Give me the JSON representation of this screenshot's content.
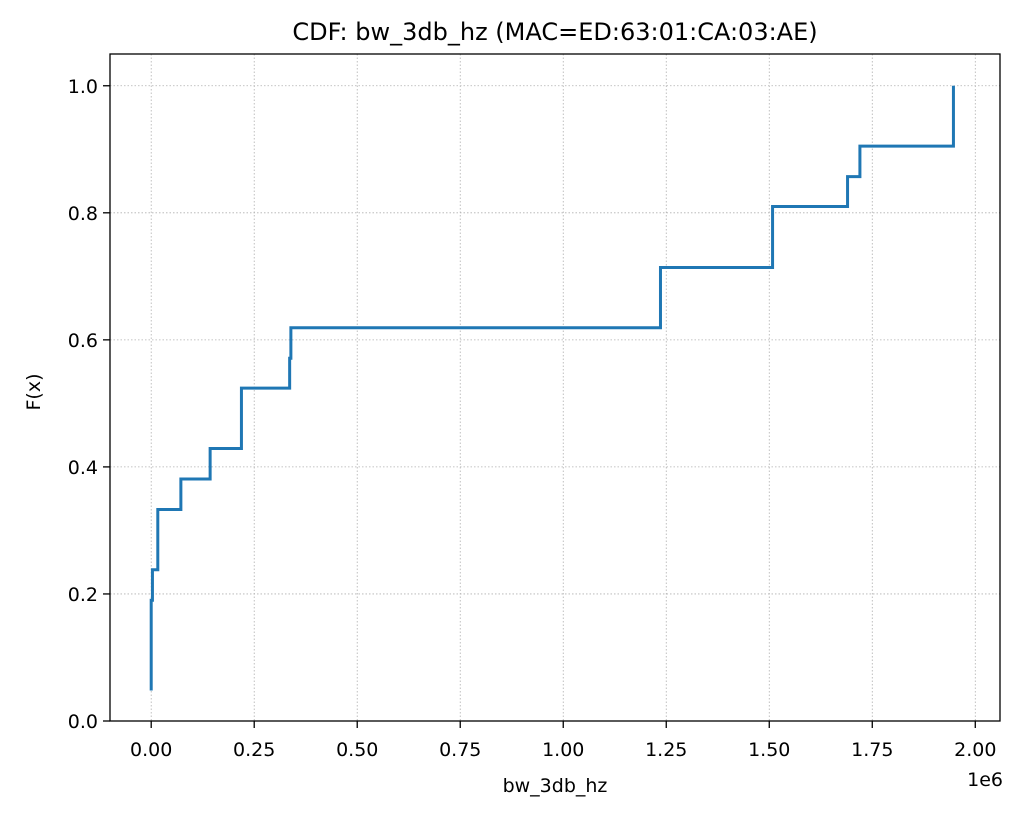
{
  "chart_data": {
    "type": "line",
    "drawstyle": "steps-post",
    "title": "CDF: bw_3db_hz (MAC=ED:63:01:CA:03:AE)",
    "xlabel": "bw_3db_hz",
    "ylabel": "F(x)",
    "x_offset_text": "1e6",
    "xlim": [
      -0.1,
      2.06
    ],
    "ylim": [
      0,
      1.05
    ],
    "x_ticks": [
      0.0,
      0.25,
      0.5,
      0.75,
      1.0,
      1.25,
      1.5,
      1.75,
      2.0
    ],
    "x_tick_labels": [
      "0.00",
      "0.25",
      "0.50",
      "0.75",
      "1.00",
      "1.25",
      "1.50",
      "1.75",
      "2.00"
    ],
    "y_ticks": [
      0.0,
      0.2,
      0.4,
      0.6,
      0.8,
      1.0
    ],
    "y_tick_labels": [
      "0.0",
      "0.2",
      "0.4",
      "0.6",
      "0.8",
      "1.0"
    ],
    "grid": true,
    "line_color": "#1f77b4",
    "series": [
      {
        "x": [
          0.0,
          0.0,
          0.003,
          0.003,
          0.016,
          0.016,
          0.072,
          0.072,
          0.143,
          0.143,
          0.219,
          0.219,
          0.336,
          0.336,
          0.339,
          0.339,
          1.236,
          1.236,
          1.508,
          1.508,
          1.69,
          1.69,
          1.72,
          1.72,
          1.947,
          1.947
        ],
        "y": [
          0.048,
          0.19,
          0.19,
          0.238,
          0.238,
          0.333,
          0.333,
          0.381,
          0.381,
          0.429,
          0.429,
          0.524,
          0.524,
          0.571,
          0.571,
          0.619,
          0.619,
          0.714,
          0.714,
          0.81,
          0.81,
          0.857,
          0.857,
          0.905,
          0.905,
          1.0
        ]
      }
    ]
  }
}
